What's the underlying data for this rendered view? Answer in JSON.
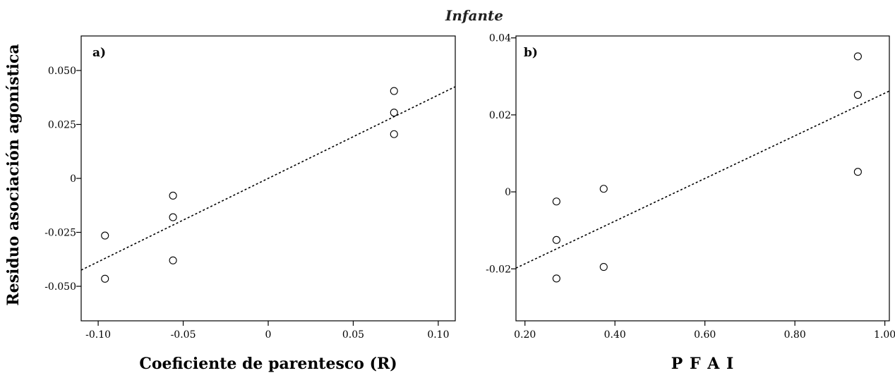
{
  "figure_title": "Infante",
  "chart_data": [
    {
      "type": "scatter",
      "panel_label": "a)",
      "xlabel": "Coeficiente de parentesco (R)",
      "ylabel": "Residuo asociación agonística",
      "xlim": [
        -0.11,
        0.11
      ],
      "ylim": [
        -0.066,
        0.066
      ],
      "xticks": [
        -0.1,
        -0.05,
        0,
        0.05,
        0.1
      ],
      "xtick_labels": [
        "-0.10",
        "-0.05",
        "0",
        "0.05",
        "0.10"
      ],
      "yticks": [
        -0.05,
        -0.025,
        0,
        0.025,
        0.05
      ],
      "ytick_labels": [
        "-0.050",
        "-0.025",
        "0",
        "0.025",
        "0.050"
      ],
      "points": [
        {
          "x": -0.096,
          "y": -0.0265
        },
        {
          "x": -0.096,
          "y": -0.0465
        },
        {
          "x": -0.056,
          "y": -0.008
        },
        {
          "x": -0.056,
          "y": -0.018
        },
        {
          "x": -0.056,
          "y": -0.038
        },
        {
          "x": 0.074,
          "y": 0.0405
        },
        {
          "x": 0.074,
          "y": 0.0305
        },
        {
          "x": 0.074,
          "y": 0.0205
        }
      ],
      "fit_line": {
        "x": [
          -0.11,
          0.11
        ],
        "y": [
          -0.0425,
          0.0425
        ],
        "style": "dotted"
      },
      "grid": false
    },
    {
      "type": "scatter",
      "panel_label": "b)",
      "xlabel": "P F A I",
      "ylabel": "",
      "xlim": [
        0.18,
        1.01
      ],
      "ylim": [
        -0.0335,
        0.0405
      ],
      "xticks": [
        0.2,
        0.4,
        0.6,
        0.8,
        1.0
      ],
      "xtick_labels": [
        "0.20",
        "0.40",
        "0.60",
        "0.80",
        "1.00"
      ],
      "yticks": [
        -0.02,
        0,
        0.02,
        0.04
      ],
      "ytick_labels": [
        "-0.02",
        "0",
        "0.02",
        "0.04"
      ],
      "points": [
        {
          "x": 0.27,
          "y": -0.0025
        },
        {
          "x": 0.27,
          "y": -0.0125
        },
        {
          "x": 0.27,
          "y": -0.0225
        },
        {
          "x": 0.375,
          "y": 0.0008
        },
        {
          "x": 0.375,
          "y": -0.0195
        },
        {
          "x": 0.94,
          "y": 0.0352
        },
        {
          "x": 0.94,
          "y": 0.0252
        },
        {
          "x": 0.94,
          "y": 0.0052
        }
      ],
      "fit_line": {
        "x": [
          0.18,
          1.01
        ],
        "y": [
          -0.0198,
          0.0262
        ],
        "style": "dotted"
      },
      "grid": false
    }
  ]
}
